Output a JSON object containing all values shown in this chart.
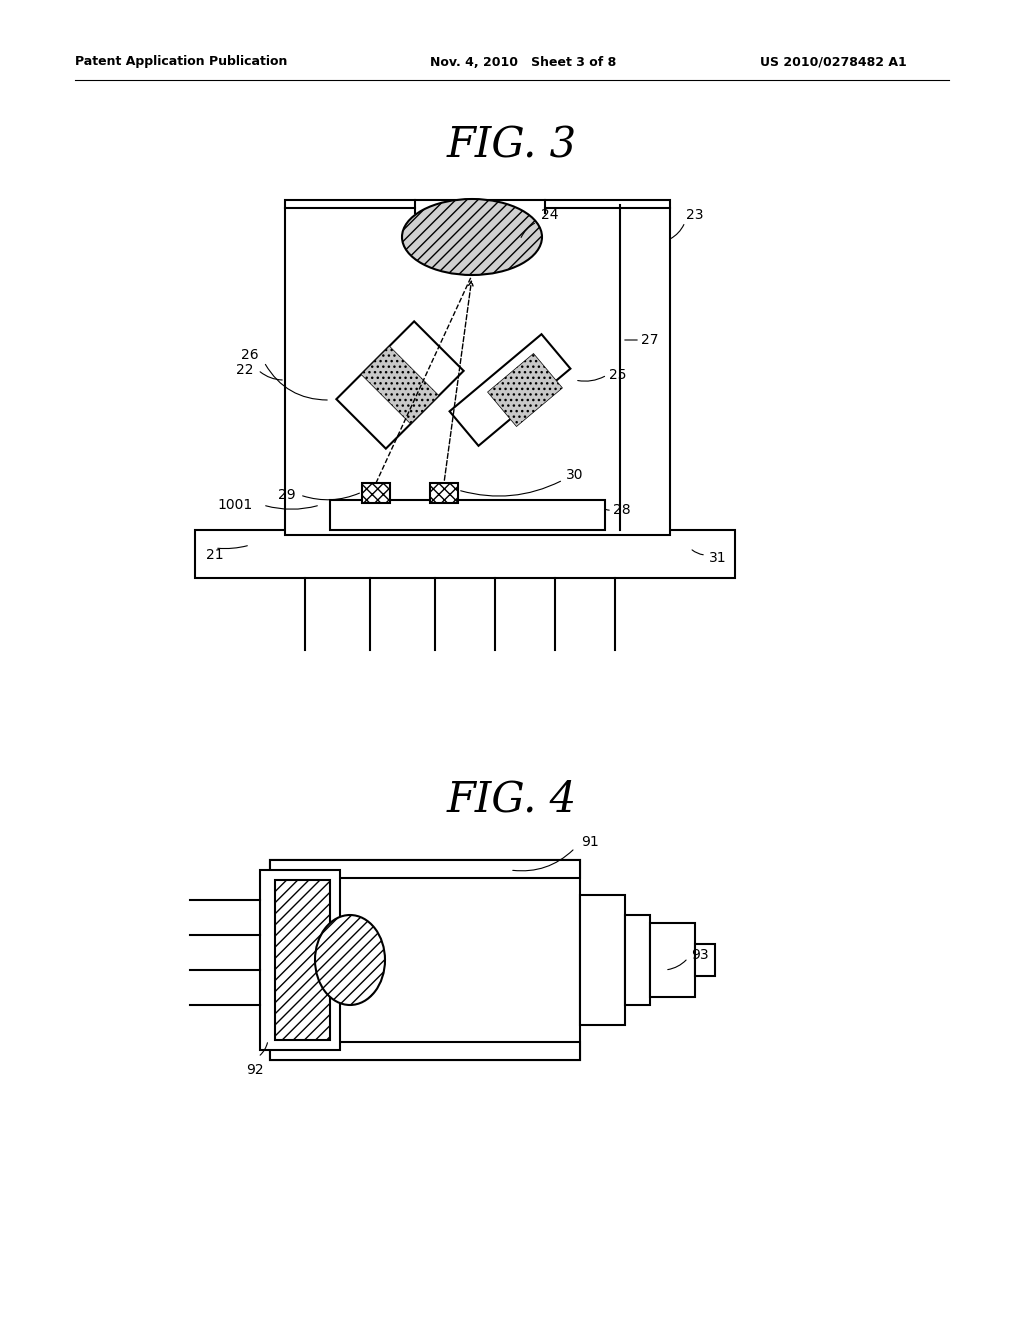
{
  "bg_color": "#ffffff",
  "line_color": "#000000",
  "header_left": "Patent Application Publication",
  "header_mid": "Nov. 4, 2010   Sheet 3 of 8",
  "header_right": "US 2010/0278482 A1",
  "fig3_title": "FIG. 3",
  "fig4_title": "FIG. 4"
}
